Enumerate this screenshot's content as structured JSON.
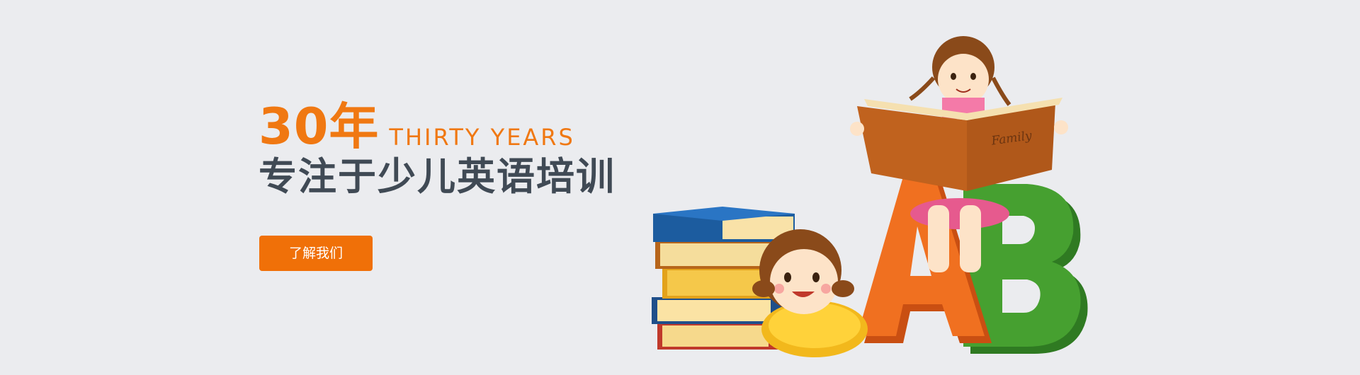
{
  "hero": {
    "years": "30年",
    "years_en": "THIRTY YEARS",
    "tagline": "专注于少儿英语培训",
    "cta_label": "了解我们"
  },
  "illustration": {
    "book_cover_text": "Family",
    "letters": [
      "A",
      "B"
    ]
  },
  "colors": {
    "background": "#ebecef",
    "accent": "#f07812",
    "headline_dark": "#404a55",
    "button": "#f07008",
    "letter_a": "#e8621a",
    "letter_b": "#3c8a2a"
  }
}
